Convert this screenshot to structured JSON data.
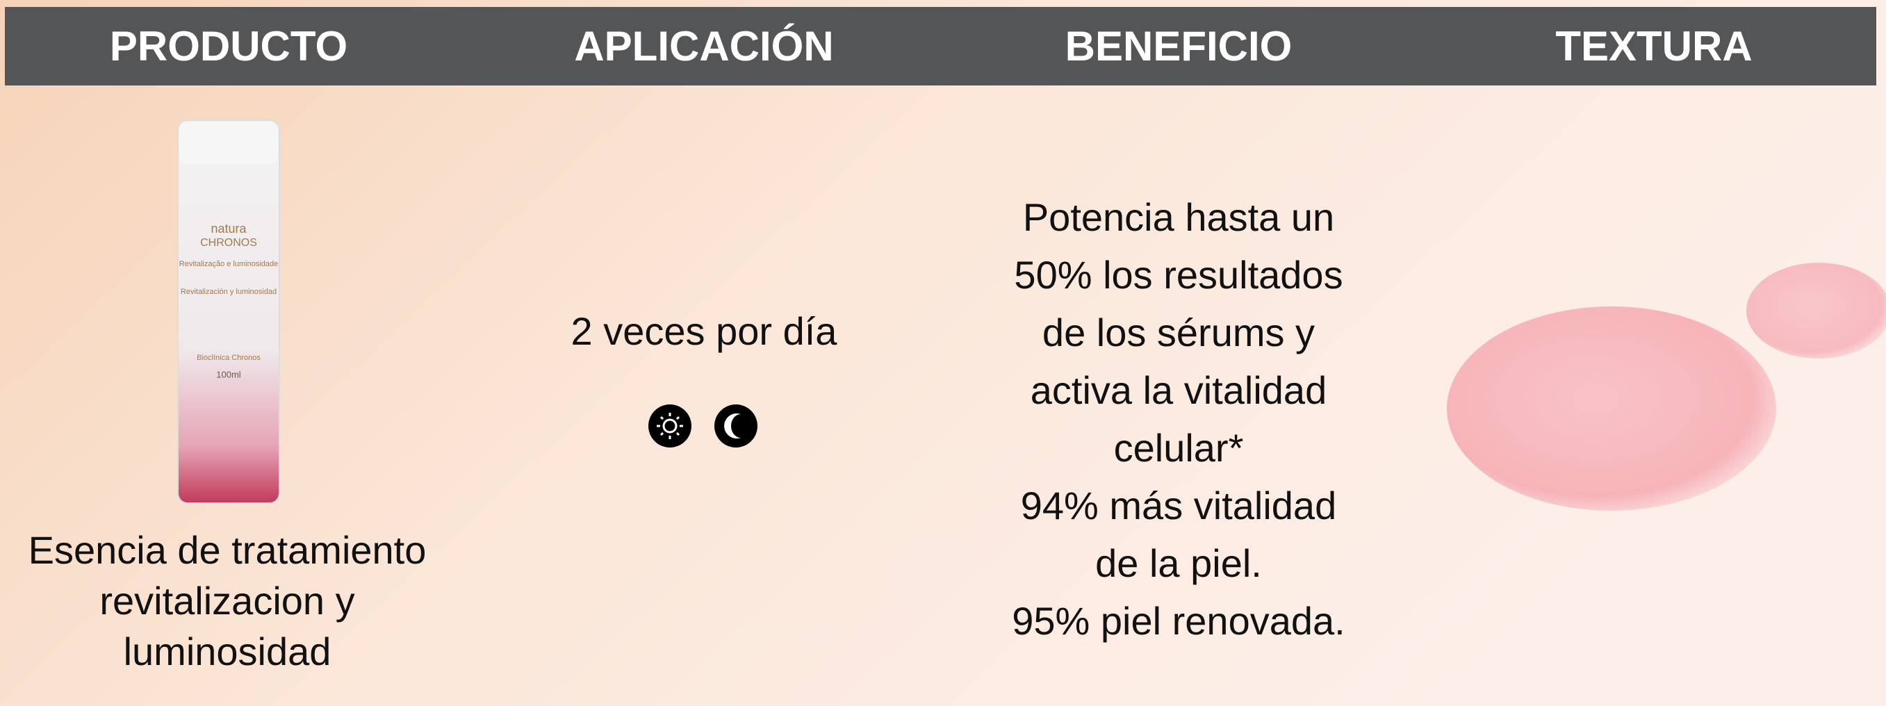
{
  "header": {
    "columns": [
      "PRODUCTO",
      "APLICACIÓN",
      "BENEFICIO",
      "TEXTURA"
    ]
  },
  "product": {
    "name_lines": [
      "Esencia de tratamiento",
      "revitalizacion y",
      "luminosidad"
    ],
    "bottle": {
      "brand": "natura",
      "line": "CHRONOS",
      "label_pt": "Revitalização e luminosidade",
      "label_es": "Revitalización y luminosidad",
      "collection": "Bioclínica Chronos",
      "volume": "100ml"
    }
  },
  "application": {
    "text": "2 veces por día"
  },
  "benefit": {
    "lines": [
      "Potencia hasta un",
      "50% los resultados",
      "de los sérums y",
      "activa la vitalidad",
      "celular*",
      "94% más vitalidad",
      "de la piel.",
      "95% piel renovada."
    ]
  }
}
